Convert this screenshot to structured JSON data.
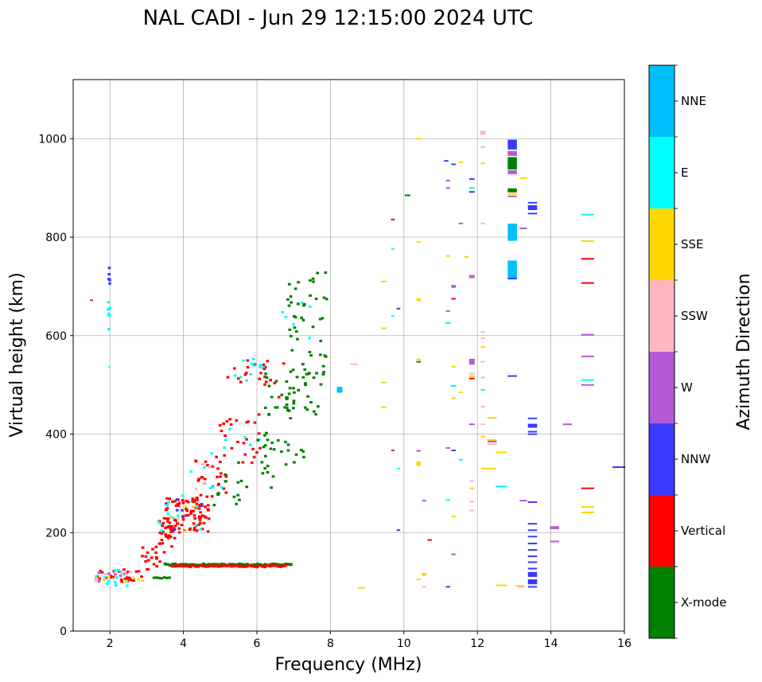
{
  "chart_data": {
    "type": "scatter",
    "title": "NAL CADI - Jun 29 12:15:00 2024 UTC",
    "xlabel": "Frequency (MHz)",
    "ylabel": "Virtual height (km)",
    "xlim": [
      1,
      16
    ],
    "ylim": [
      0,
      1120
    ],
    "xticks": [
      2,
      4,
      6,
      8,
      10,
      12,
      14,
      16
    ],
    "yticks": [
      0,
      200,
      400,
      600,
      800,
      1000
    ],
    "xtick_labels": [
      "2",
      "4",
      "6",
      "8",
      "10",
      "12",
      "14",
      "16"
    ],
    "ytick_labels": [
      "0",
      "200",
      "400",
      "600",
      "800",
      "1000"
    ],
    "grid": true,
    "colorbar": {
      "label": "Azimuth Direction",
      "categories": [
        "X-mode",
        "Vertical",
        "NNW",
        "W",
        "SSW",
        "SSE",
        "E",
        "NNE"
      ],
      "colors": [
        "#008000",
        "#ff0000",
        "#3a3aff",
        "#b45ad8",
        "#ffb6c1",
        "#ffd700",
        "#00ffff",
        "#00bfff"
      ]
    },
    "bands": [
      {
        "c": 0,
        "f0": 3.5,
        "f1": 6.95,
        "h": 135,
        "dh": 6
      },
      {
        "c": 1,
        "f0": 3.7,
        "f1": 6.85,
        "h": 132,
        "dh": 6
      },
      {
        "c": 0,
        "f0": 3.2,
        "f1": 3.65,
        "h": 108,
        "dh": 5
      }
    ],
    "clusters": [
      {
        "c": 1,
        "fa": 1.5,
        "fb": 2.9,
        "ha": 98,
        "hb": 125,
        "n": 28
      },
      {
        "c": 6,
        "fa": 1.6,
        "fb": 2.9,
        "ha": 92,
        "hb": 125,
        "n": 14
      },
      {
        "c": 5,
        "fa": 1.6,
        "fb": 2.9,
        "ha": 90,
        "hb": 115,
        "n": 7
      },
      {
        "c": 3,
        "fa": 1.6,
        "fb": 2.8,
        "ha": 95,
        "hb": 120,
        "n": 6
      },
      {
        "c": 4,
        "fa": 1.6,
        "fb": 2.8,
        "ha": 95,
        "hb": 120,
        "n": 6
      },
      {
        "c": 1,
        "fa": 2.8,
        "fb": 3.5,
        "ha": 125,
        "hb": 175,
        "n": 18
      },
      {
        "c": 1,
        "fa": 3.3,
        "fb": 3.8,
        "ha": 170,
        "hb": 230,
        "n": 26
      },
      {
        "c": 1,
        "fa": 3.5,
        "fb": 4.7,
        "ha": 200,
        "hb": 270,
        "n": 85
      },
      {
        "c": 6,
        "fa": 3.3,
        "fb": 4.6,
        "ha": 200,
        "hb": 280,
        "n": 12
      },
      {
        "c": 2,
        "fa": 3.4,
        "fb": 4.6,
        "ha": 200,
        "hb": 270,
        "n": 6
      },
      {
        "c": 5,
        "fa": 3.5,
        "fb": 4.5,
        "ha": 200,
        "hb": 260,
        "n": 5
      },
      {
        "c": 1,
        "fa": 4.2,
        "fb": 5.2,
        "ha": 270,
        "hb": 360,
        "n": 30
      },
      {
        "c": 6,
        "fa": 4.2,
        "fb": 5.2,
        "ha": 290,
        "hb": 380,
        "n": 8
      },
      {
        "c": 4,
        "fa": 4.3,
        "fb": 5.0,
        "ha": 280,
        "hb": 340,
        "n": 4
      },
      {
        "c": 1,
        "fa": 4.9,
        "fb": 6.2,
        "ha": 340,
        "hb": 440,
        "n": 24
      },
      {
        "c": 6,
        "fa": 4.9,
        "fb": 6.2,
        "ha": 360,
        "hb": 440,
        "n": 6
      },
      {
        "c": 1,
        "fa": 5.2,
        "fb": 6.3,
        "ha": 500,
        "hb": 550,
        "n": 14
      },
      {
        "c": 6,
        "fa": 5.2,
        "fb": 6.2,
        "ha": 500,
        "hb": 555,
        "n": 12
      },
      {
        "c": 1,
        "fa": 6.0,
        "fb": 6.8,
        "ha": 470,
        "hb": 550,
        "n": 8
      },
      {
        "c": 6,
        "fa": 6.6,
        "fb": 7.5,
        "ha": 590,
        "hb": 680,
        "n": 6
      },
      {
        "c": 0,
        "fa": 4.6,
        "fb": 5.6,
        "ha": 250,
        "hb": 320,
        "n": 10
      },
      {
        "c": 0,
        "fa": 5.5,
        "fb": 6.5,
        "ha": 290,
        "hb": 400,
        "n": 16
      },
      {
        "c": 0,
        "fa": 6.2,
        "fb": 7.4,
        "ha": 330,
        "hb": 540,
        "n": 36
      },
      {
        "c": 0,
        "fa": 6.8,
        "fb": 7.9,
        "ha": 440,
        "hb": 740,
        "n": 70
      },
      {
        "c": 2,
        "fa": 1.95,
        "fb": 2.0,
        "ha": 700,
        "hb": 740,
        "n": 5
      },
      {
        "c": 6,
        "fa": 1.95,
        "fb": 2.0,
        "ha": 600,
        "hb": 670,
        "n": 6
      }
    ],
    "marks": [
      {
        "c": 1,
        "f": 1.5,
        "h": 672,
        "w": 0.08
      },
      {
        "c": 6,
        "f": 1.97,
        "h": 537,
        "w": 0.04
      },
      {
        "c": 7,
        "f": 8.25,
        "h": 490,
        "w": 0.15,
        "dh": 12
      },
      {
        "c": 4,
        "f": 8.65,
        "h": 542,
        "w": 0.2
      },
      {
        "c": 5,
        "f": 8.85,
        "h": 88,
        "w": 0.2
      },
      {
        "c": 5,
        "f": 9.45,
        "h": 710,
        "w": 0.15
      },
      {
        "c": 5,
        "f": 9.45,
        "h": 615,
        "w": 0.15
      },
      {
        "c": 5,
        "f": 9.45,
        "h": 505,
        "w": 0.15
      },
      {
        "c": 5,
        "f": 9.45,
        "h": 455,
        "w": 0.15
      },
      {
        "c": 1,
        "f": 9.7,
        "h": 836,
        "w": 0.1
      },
      {
        "c": 6,
        "f": 9.7,
        "h": 776,
        "w": 0.08
      },
      {
        "c": 6,
        "f": 9.7,
        "h": 640,
        "w": 0.08
      },
      {
        "c": 1,
        "f": 9.7,
        "h": 367,
        "w": 0.08
      },
      {
        "c": 2,
        "f": 9.85,
        "h": 655,
        "w": 0.1
      },
      {
        "c": 6,
        "f": 9.85,
        "h": 330,
        "w": 0.1
      },
      {
        "c": 2,
        "f": 9.85,
        "h": 205,
        "w": 0.1
      },
      {
        "c": 0,
        "f": 10.1,
        "h": 885,
        "w": 0.15
      },
      {
        "c": 5,
        "f": 10.4,
        "h": 1000,
        "w": 0.12
      },
      {
        "c": 5,
        "f": 10.4,
        "h": 790,
        "w": 0.12
      },
      {
        "c": 5,
        "f": 10.4,
        "h": 673,
        "w": 0.12,
        "dh": 6
      },
      {
        "c": 5,
        "f": 10.4,
        "h": 552,
        "w": 0.12
      },
      {
        "c": 0,
        "f": 10.4,
        "h": 547,
        "w": 0.12
      },
      {
        "c": 3,
        "f": 10.4,
        "h": 366,
        "w": 0.12
      },
      {
        "c": 5,
        "f": 10.4,
        "h": 340,
        "w": 0.12,
        "dh": 9
      },
      {
        "c": 5,
        "f": 10.4,
        "h": 105,
        "w": 0.12
      },
      {
        "c": 3,
        "f": 10.55,
        "h": 265,
        "w": 0.12
      },
      {
        "c": 5,
        "f": 10.55,
        "h": 115,
        "w": 0.12,
        "dh": 6
      },
      {
        "c": 4,
        "f": 10.55,
        "h": 90,
        "w": 0.12
      },
      {
        "c": 1,
        "f": 10.7,
        "h": 185,
        "w": 0.12
      },
      {
        "c": 5,
        "f": 11.2,
        "h": 762,
        "w": 0.12
      },
      {
        "c": 6,
        "f": 11.2,
        "h": 626,
        "w": 0.15
      },
      {
        "c": 3,
        "f": 11.2,
        "h": 650,
        "w": 0.12
      },
      {
        "c": 3,
        "f": 11.2,
        "h": 372,
        "w": 0.12
      },
      {
        "c": 6,
        "f": 11.2,
        "h": 266,
        "w": 0.12
      },
      {
        "c": 2,
        "f": 11.2,
        "h": 90,
        "w": 0.12
      },
      {
        "c": 2,
        "f": 11.15,
        "h": 955,
        "w": 0.12
      },
      {
        "c": 3,
        "f": 11.2,
        "h": 915,
        "w": 0.12
      },
      {
        "c": 3,
        "f": 11.2,
        "h": 900,
        "w": 0.12
      },
      {
        "c": 2,
        "f": 11.35,
        "h": 948,
        "w": 0.12
      },
      {
        "c": 3,
        "f": 11.35,
        "h": 700,
        "w": 0.12,
        "dh": 6
      },
      {
        "c": 1,
        "f": 11.35,
        "h": 675,
        "w": 0.12
      },
      {
        "c": 5,
        "f": 11.35,
        "h": 537,
        "w": 0.12
      },
      {
        "c": 6,
        "f": 11.35,
        "h": 498,
        "w": 0.15
      },
      {
        "c": 5,
        "f": 11.35,
        "h": 473,
        "w": 0.12
      },
      {
        "c": 2,
        "f": 11.35,
        "h": 367,
        "w": 0.12
      },
      {
        "c": 5,
        "f": 11.35,
        "h": 233,
        "w": 0.12
      },
      {
        "c": 3,
        "f": 11.35,
        "h": 156,
        "w": 0.12
      },
      {
        "c": 5,
        "f": 11.55,
        "h": 952,
        "w": 0.12
      },
      {
        "c": 3,
        "f": 11.55,
        "h": 828,
        "w": 0.12
      },
      {
        "c": 5,
        "f": 11.7,
        "h": 760,
        "w": 0.12
      },
      {
        "c": 5,
        "f": 11.55,
        "h": 485,
        "w": 0.12
      },
      {
        "c": 6,
        "f": 11.55,
        "h": 348,
        "w": 0.12
      },
      {
        "c": 2,
        "f": 11.85,
        "h": 918,
        "w": 0.15
      },
      {
        "c": 6,
        "f": 11.85,
        "h": 900,
        "w": 0.15
      },
      {
        "c": 2,
        "f": 11.85,
        "h": 892,
        "w": 0.15
      },
      {
        "c": 3,
        "f": 11.85,
        "h": 720,
        "w": 0.15,
        "dh": 6
      },
      {
        "c": 3,
        "f": 11.85,
        "h": 547,
        "w": 0.15,
        "dh": 12
      },
      {
        "c": 4,
        "f": 11.85,
        "h": 523,
        "w": 0.15
      },
      {
        "c": 5,
        "f": 11.85,
        "h": 518,
        "w": 0.15
      },
      {
        "c": 1,
        "f": 11.85,
        "h": 513,
        "w": 0.15
      },
      {
        "c": 3,
        "f": 11.85,
        "h": 420,
        "w": 0.15
      },
      {
        "c": 4,
        "f": 11.85,
        "h": 305,
        "w": 0.12
      },
      {
        "c": 5,
        "f": 11.85,
        "h": 290,
        "w": 0.12
      },
      {
        "c": 4,
        "f": 11.85,
        "h": 263,
        "w": 0.12
      },
      {
        "c": 4,
        "f": 11.85,
        "h": 245,
        "w": 0.12
      },
      {
        "c": 4,
        "f": 12.15,
        "h": 1012,
        "w": 0.15,
        "dh": 8
      },
      {
        "c": 4,
        "f": 12.15,
        "h": 983,
        "w": 0.12
      },
      {
        "c": 5,
        "f": 12.15,
        "h": 950,
        "w": 0.12
      },
      {
        "c": 4,
        "f": 12.15,
        "h": 828,
        "w": 0.12
      },
      {
        "c": 4,
        "f": 12.15,
        "h": 607,
        "w": 0.12
      },
      {
        "c": 4,
        "f": 12.15,
        "h": 595,
        "w": 0.12
      },
      {
        "c": 5,
        "f": 12.15,
        "h": 577,
        "w": 0.12
      },
      {
        "c": 4,
        "f": 12.15,
        "h": 547,
        "w": 0.12
      },
      {
        "c": 4,
        "f": 12.15,
        "h": 515,
        "w": 0.12
      },
      {
        "c": 6,
        "f": 12.15,
        "h": 490,
        "w": 0.12
      },
      {
        "c": 4,
        "f": 12.15,
        "h": 456,
        "w": 0.12
      },
      {
        "c": 4,
        "f": 12.15,
        "h": 420,
        "w": 0.12
      },
      {
        "c": 5,
        "f": 12.15,
        "h": 395,
        "w": 0.12
      },
      {
        "c": 5,
        "f": 12.3,
        "h": 330,
        "w": 0.4
      },
      {
        "c": 5,
        "f": 12.4,
        "h": 433,
        "w": 0.25
      },
      {
        "c": 5,
        "f": 12.4,
        "h": 388,
        "w": 0.25
      },
      {
        "c": 3,
        "f": 12.4,
        "h": 385,
        "w": 0.25
      },
      {
        "c": 4,
        "f": 12.4,
        "h": 380,
        "w": 0.25
      },
      {
        "c": 5,
        "f": 12.65,
        "h": 363,
        "w": 0.3
      },
      {
        "c": 6,
        "f": 12.65,
        "h": 294,
        "w": 0.3
      },
      {
        "c": 5,
        "f": 12.65,
        "h": 93,
        "w": 0.3
      },
      {
        "c": 2,
        "f": 12.95,
        "h": 988,
        "w": 0.25,
        "dh": 20
      },
      {
        "c": 3,
        "f": 12.95,
        "h": 970,
        "w": 0.25,
        "dh": 10
      },
      {
        "c": 0,
        "f": 12.95,
        "h": 950,
        "w": 0.25,
        "dh": 25
      },
      {
        "c": 3,
        "f": 12.95,
        "h": 932,
        "w": 0.25,
        "dh": 8
      },
      {
        "c": 5,
        "f": 13.25,
        "h": 920,
        "w": 0.2
      },
      {
        "c": 0,
        "f": 12.95,
        "h": 895,
        "w": 0.25,
        "dh": 8
      },
      {
        "c": 5,
        "f": 12.95,
        "h": 888,
        "w": 0.25
      },
      {
        "c": 3,
        "f": 12.95,
        "h": 883,
        "w": 0.25
      },
      {
        "c": 7,
        "f": 12.95,
        "h": 810,
        "w": 0.25,
        "dh": 35
      },
      {
        "c": 3,
        "f": 13.25,
        "h": 818,
        "w": 0.2
      },
      {
        "c": 7,
        "f": 12.95,
        "h": 735,
        "w": 0.25,
        "dh": 35
      },
      {
        "c": 2,
        "f": 12.95,
        "h": 716,
        "w": 0.25
      },
      {
        "c": 2,
        "f": 12.95,
        "h": 518,
        "w": 0.25
      },
      {
        "c": 3,
        "f": 13.25,
        "h": 265,
        "w": 0.2
      },
      {
        "c": 5,
        "f": 13.15,
        "h": 92,
        "w": 0.2
      },
      {
        "c": 4,
        "f": 13.2,
        "h": 90,
        "w": 0.2
      },
      {
        "c": 2,
        "f": 13.5,
        "h": 870,
        "w": 0.25
      },
      {
        "c": 2,
        "f": 13.5,
        "h": 860,
        "w": 0.25,
        "dh": 10
      },
      {
        "c": 2,
        "f": 13.5,
        "h": 848,
        "w": 0.25
      },
      {
        "c": 2,
        "f": 13.5,
        "h": 432,
        "w": 0.25
      },
      {
        "c": 2,
        "f": 13.5,
        "h": 417,
        "w": 0.25,
        "dh": 8
      },
      {
        "c": 2,
        "f": 13.5,
        "h": 405,
        "w": 0.25
      },
      {
        "c": 2,
        "f": 13.5,
        "h": 400,
        "w": 0.25
      },
      {
        "c": 2,
        "f": 13.5,
        "h": 262,
        "w": 0.25
      },
      {
        "c": 2,
        "f": 13.5,
        "h": 218,
        "w": 0.25
      },
      {
        "c": 2,
        "f": 13.5,
        "h": 205,
        "w": 0.25
      },
      {
        "c": 2,
        "f": 13.5,
        "h": 192,
        "w": 0.25
      },
      {
        "c": 2,
        "f": 13.5,
        "h": 178,
        "w": 0.25
      },
      {
        "c": 2,
        "f": 13.5,
        "h": 165,
        "w": 0.25
      },
      {
        "c": 2,
        "f": 13.5,
        "h": 152,
        "w": 0.25
      },
      {
        "c": 2,
        "f": 13.5,
        "h": 140,
        "w": 0.25
      },
      {
        "c": 2,
        "f": 13.5,
        "h": 127,
        "w": 0.25
      },
      {
        "c": 2,
        "f": 13.5,
        "h": 115,
        "w": 0.25,
        "dh": 10
      },
      {
        "c": 2,
        "f": 13.5,
        "h": 100,
        "w": 0.25,
        "dh": 10
      },
      {
        "c": 2,
        "f": 13.5,
        "h": 90,
        "w": 0.25
      },
      {
        "c": 3,
        "f": 14.1,
        "h": 210,
        "w": 0.25,
        "dh": 6
      },
      {
        "c": 3,
        "f": 14.1,
        "h": 182,
        "w": 0.25
      },
      {
        "c": 3,
        "f": 14.45,
        "h": 420,
        "w": 0.25
      },
      {
        "c": 6,
        "f": 15.0,
        "h": 846,
        "w": 0.35
      },
      {
        "c": 5,
        "f": 15.0,
        "h": 792,
        "w": 0.35
      },
      {
        "c": 1,
        "f": 15.0,
        "h": 756,
        "w": 0.35
      },
      {
        "c": 1,
        "f": 15.0,
        "h": 707,
        "w": 0.35
      },
      {
        "c": 3,
        "f": 15.0,
        "h": 602,
        "w": 0.35
      },
      {
        "c": 3,
        "f": 15.0,
        "h": 558,
        "w": 0.35
      },
      {
        "c": 6,
        "f": 15.0,
        "h": 510,
        "w": 0.35
      },
      {
        "c": 3,
        "f": 15.0,
        "h": 500,
        "w": 0.35
      },
      {
        "c": 1,
        "f": 15.0,
        "h": 290,
        "w": 0.35
      },
      {
        "c": 5,
        "f": 15.0,
        "h": 252,
        "w": 0.35
      },
      {
        "c": 5,
        "f": 15.0,
        "h": 241,
        "w": 0.35
      },
      {
        "c": 2,
        "f": 15.85,
        "h": 333,
        "w": 0.35
      }
    ]
  }
}
